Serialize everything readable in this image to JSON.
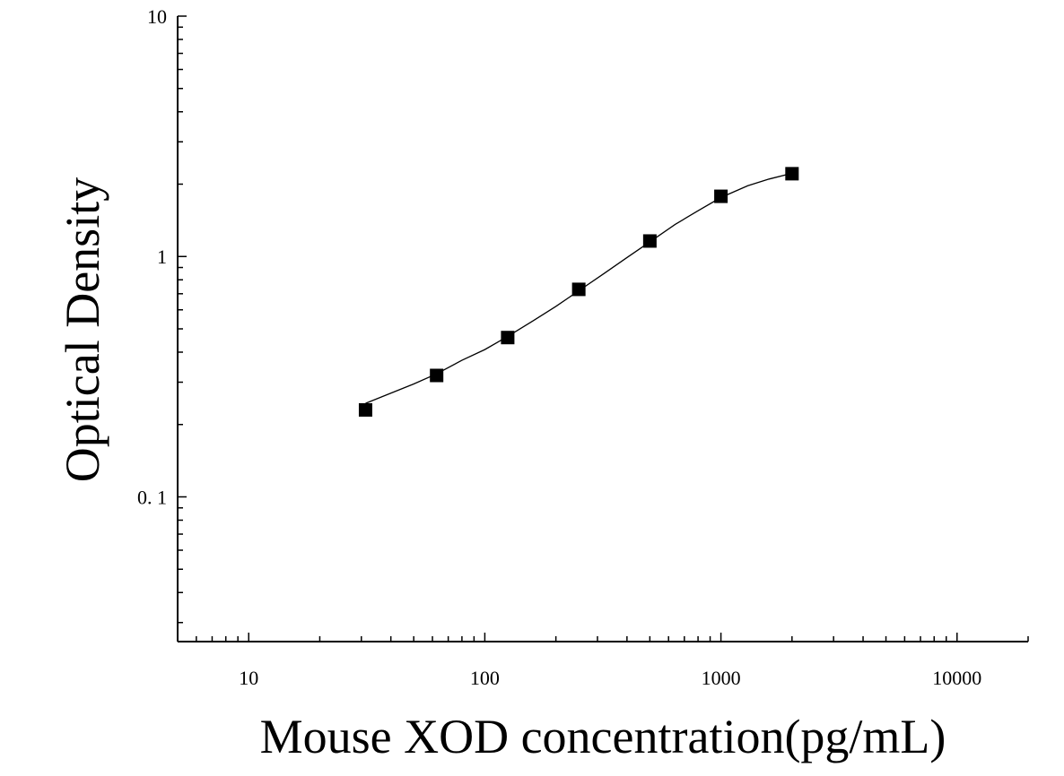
{
  "chart_data": {
    "type": "scatter",
    "title": "",
    "xlabel": "Mouse XOD concentration(pg/mL)",
    "ylabel": "Optical Density",
    "x_scale": "log",
    "y_scale": "log",
    "xlim": [
      5,
      20000
    ],
    "ylim": [
      0.025,
      10
    ],
    "x_ticks": [
      {
        "value": 10,
        "label": "10"
      },
      {
        "value": 100,
        "label": "100"
      },
      {
        "value": 1000,
        "label": "1000"
      },
      {
        "value": 10000,
        "label": "10000"
      }
    ],
    "y_ticks": [
      {
        "value": 0.1,
        "label": "0. 1"
      },
      {
        "value": 1,
        "label": "1"
      },
      {
        "value": 10,
        "label": "10"
      }
    ],
    "grid": false,
    "legend": "none",
    "series": [
      {
        "marker": "square",
        "color": "#000000",
        "x": [
          31.25,
          62.5,
          125,
          250,
          500,
          1000,
          2000
        ],
        "y": [
          0.23,
          0.32,
          0.46,
          0.73,
          1.16,
          1.78,
          2.21
        ]
      }
    ],
    "fit_curve": {
      "style": "line",
      "color": "#000000",
      "x": [
        31.25,
        40,
        50,
        62.5,
        80,
        100,
        125,
        160,
        200,
        250,
        320,
        400,
        500,
        640,
        800,
        1000,
        1300,
        1600,
        2000
      ],
      "y": [
        0.245,
        0.27,
        0.295,
        0.325,
        0.37,
        0.41,
        0.465,
        0.54,
        0.62,
        0.72,
        0.85,
        0.99,
        1.15,
        1.36,
        1.55,
        1.76,
        1.97,
        2.1,
        2.22
      ]
    }
  }
}
